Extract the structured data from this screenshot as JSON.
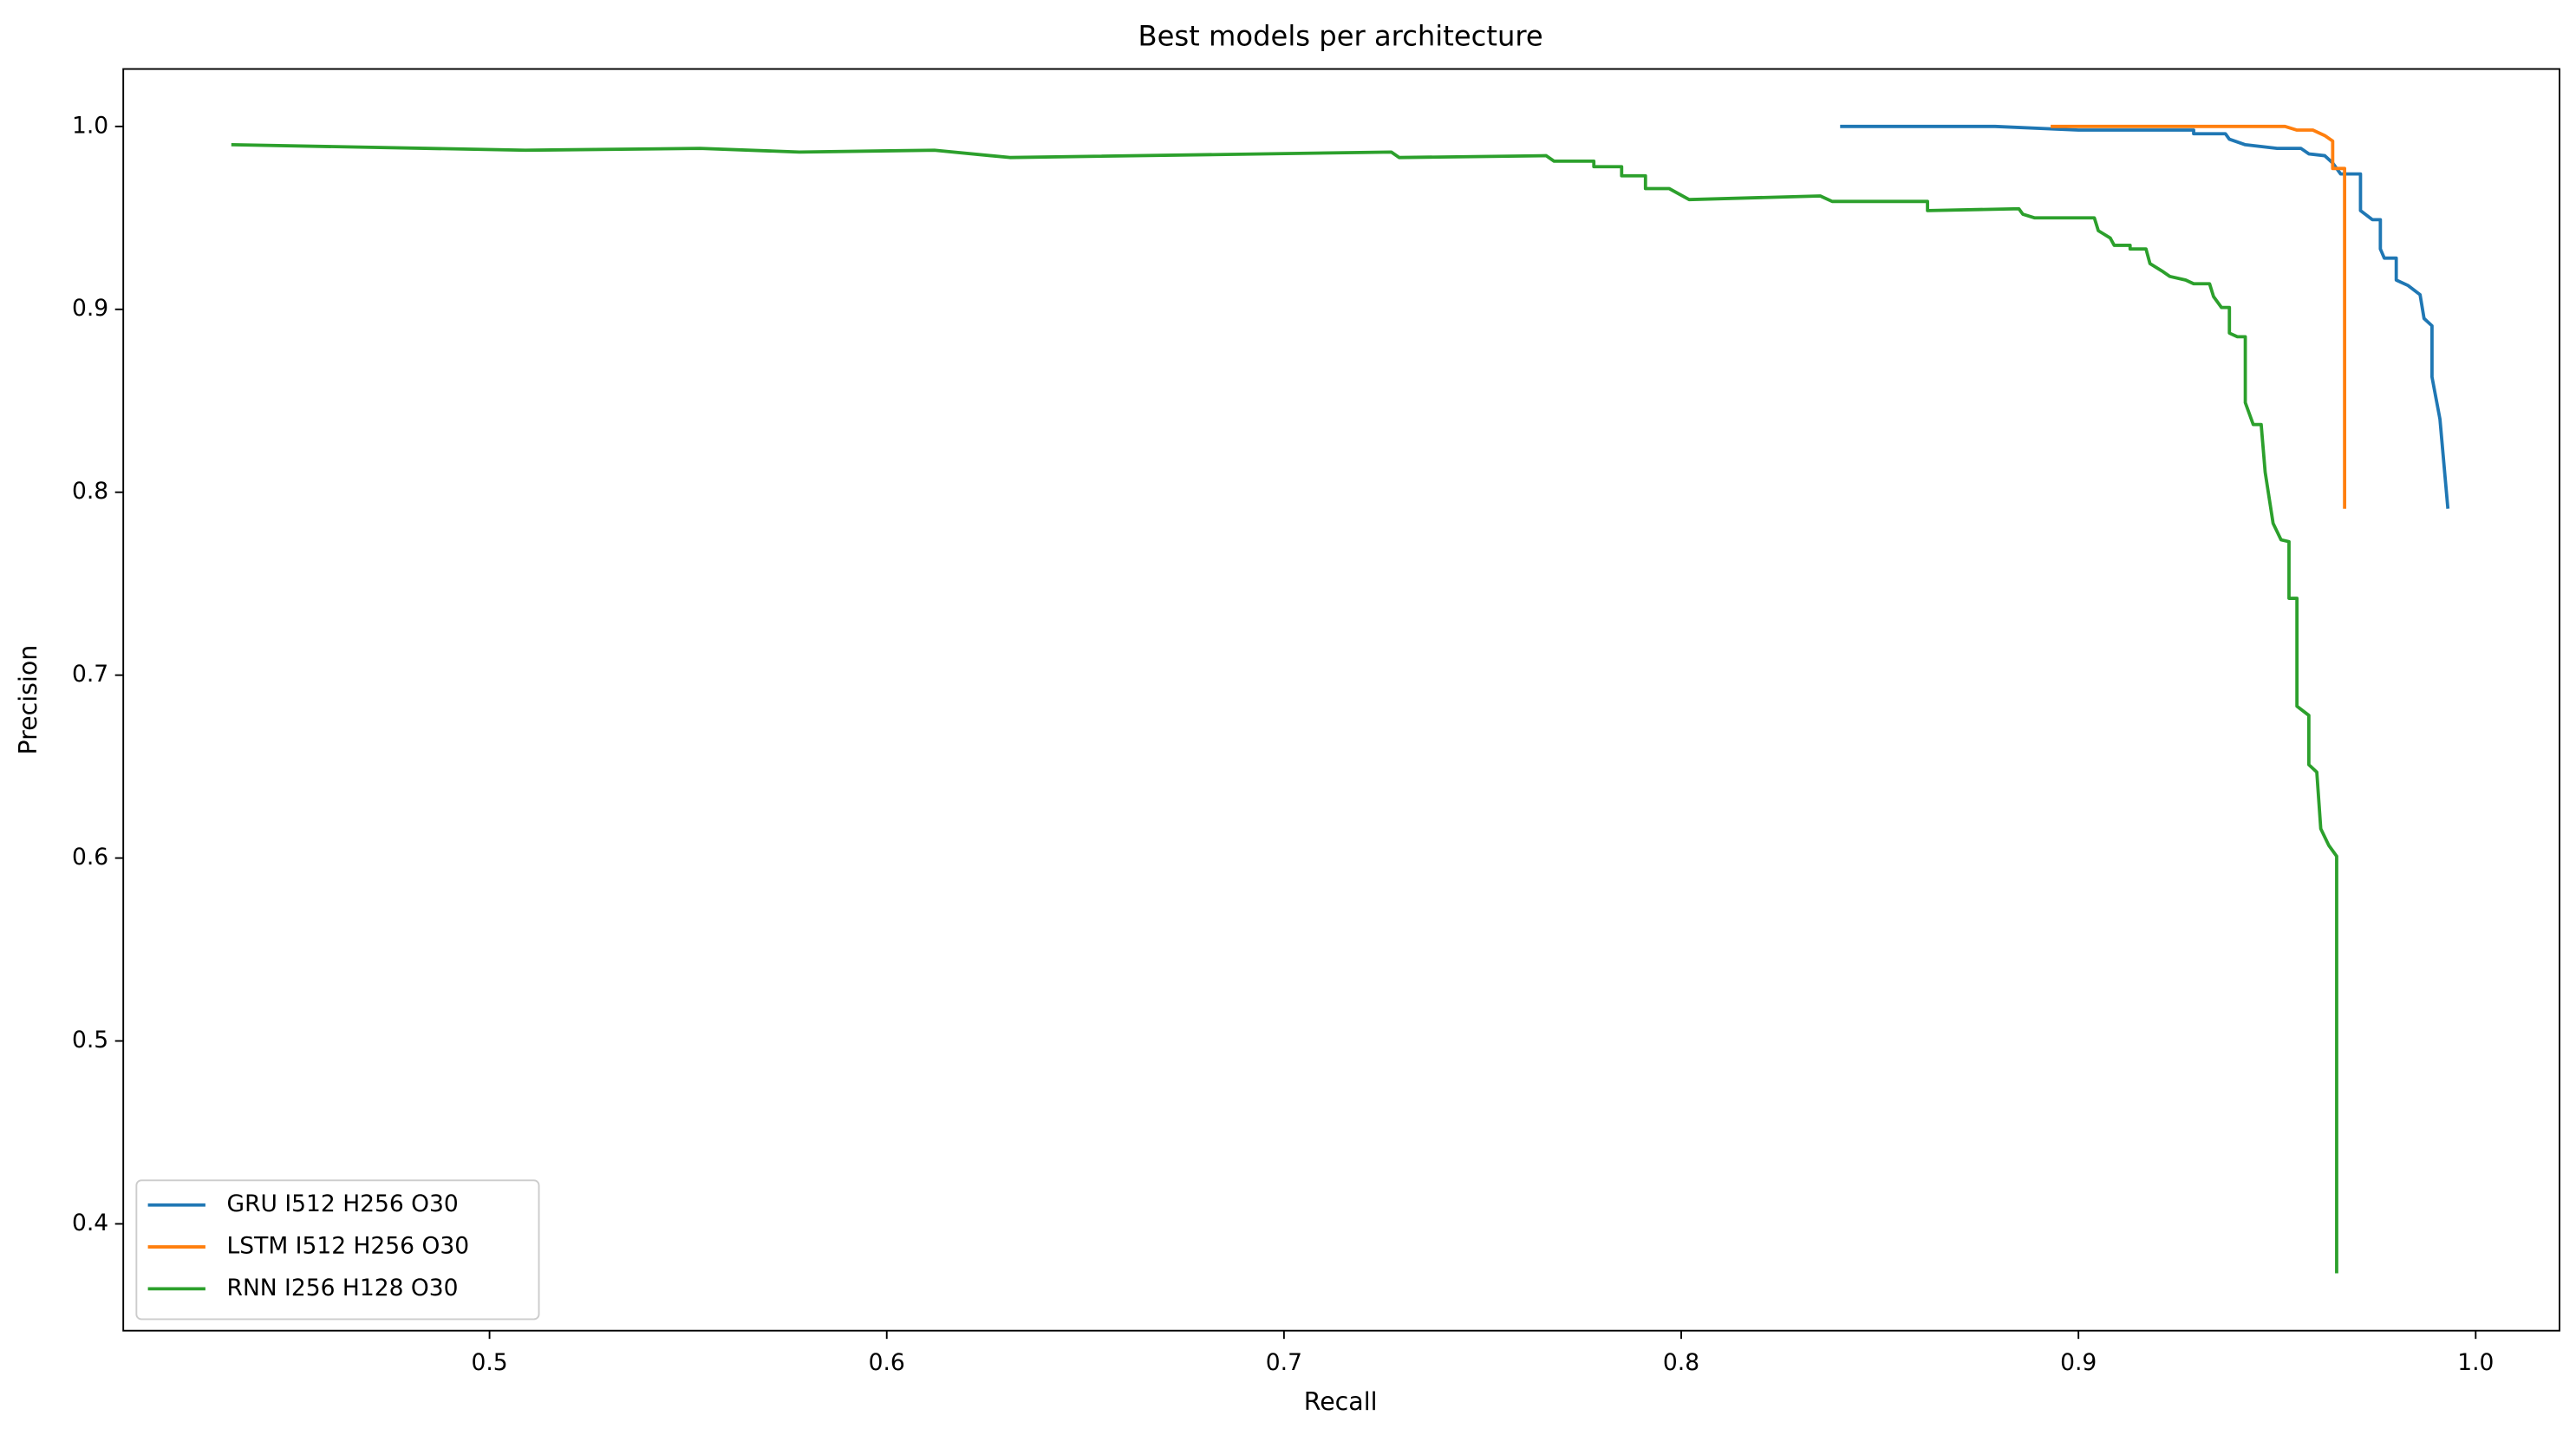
{
  "chart_data": {
    "type": "line",
    "title": "Best models per architecture",
    "x_label": "Recall",
    "y_label": "Precision",
    "xlim": [
      0.4078,
      1.0211
    ],
    "ylim": [
      0.3416,
      1.0314
    ],
    "xticks": [
      0.5,
      0.6,
      0.7,
      0.8,
      0.9,
      {
        "value": 1,
        "label": "1.0"
      }
    ],
    "yticks": [
      0.4,
      0.5,
      0.6,
      0.7,
      0.8,
      0.9,
      {
        "value": 1,
        "label": "1.0"
      }
    ],
    "legend": "lower left",
    "grid": false,
    "series": [
      {
        "name": "GRU I512 H256 O30",
        "color": "#1f77b4",
        "x": [
          0.84,
          0.879,
          0.9,
          0.929,
          0.929,
          0.937,
          0.938,
          0.942,
          0.95,
          0.956,
          0.958,
          0.962,
          0.964,
          0.966,
          0.971,
          0.971,
          0.974,
          0.976,
          0.976,
          0.977,
          0.98,
          0.98,
          0.983,
          0.986,
          0.987,
          0.989,
          0.989,
          0.991,
          0.993
        ],
        "values": [
          1.0,
          1.0,
          0.998,
          0.998,
          0.996,
          0.996,
          0.993,
          0.99,
          0.988,
          0.988,
          0.985,
          0.984,
          0.98,
          0.974,
          0.974,
          0.954,
          0.949,
          0.949,
          0.933,
          0.928,
          0.928,
          0.916,
          0.913,
          0.908,
          0.895,
          0.891,
          0.863,
          0.84,
          0.791
        ]
      },
      {
        "name": "LSTM I512 H256 O30",
        "color": "#ff7f0e",
        "x": [
          0.893,
          0.952,
          0.955,
          0.959,
          0.962,
          0.964,
          0.964,
          0.967,
          0.967
        ],
        "values": [
          1.0,
          1.0,
          0.998,
          0.998,
          0.995,
          0.992,
          0.977,
          0.977,
          0.791
        ]
      },
      {
        "name": "RNN I256 H128 O30",
        "color": "#2ca02c",
        "x": [
          0.435,
          0.509,
          0.553,
          0.578,
          0.612,
          0.631,
          0.727,
          0.729,
          0.766,
          0.768,
          0.778,
          0.778,
          0.785,
          0.785,
          0.791,
          0.791,
          0.797,
          0.802,
          0.835,
          0.838,
          0.862,
          0.862,
          0.885,
          0.886,
          0.889,
          0.904,
          0.905,
          0.908,
          0.909,
          0.913,
          0.913,
          0.917,
          0.918,
          0.921,
          0.923,
          0.927,
          0.929,
          0.933,
          0.934,
          0.936,
          0.938,
          0.938,
          0.94,
          0.942,
          0.942,
          0.944,
          0.946,
          0.947,
          0.949,
          0.951,
          0.953,
          0.953,
          0.955,
          0.955,
          0.958,
          0.958,
          0.96,
          0.961,
          0.963,
          0.965,
          0.965
        ],
        "values": [
          0.99,
          0.987,
          0.988,
          0.986,
          0.987,
          0.983,
          0.986,
          0.983,
          0.984,
          0.981,
          0.981,
          0.978,
          0.978,
          0.973,
          0.973,
          0.966,
          0.966,
          0.96,
          0.962,
          0.959,
          0.959,
          0.954,
          0.955,
          0.952,
          0.95,
          0.95,
          0.943,
          0.939,
          0.935,
          0.935,
          0.933,
          0.933,
          0.925,
          0.921,
          0.918,
          0.916,
          0.914,
          0.914,
          0.907,
          0.901,
          0.901,
          0.887,
          0.885,
          0.885,
          0.849,
          0.837,
          0.837,
          0.811,
          0.783,
          0.774,
          0.773,
          0.742,
          0.742,
          0.683,
          0.678,
          0.651,
          0.647,
          0.616,
          0.607,
          0.601,
          0.373
        ]
      }
    ]
  }
}
